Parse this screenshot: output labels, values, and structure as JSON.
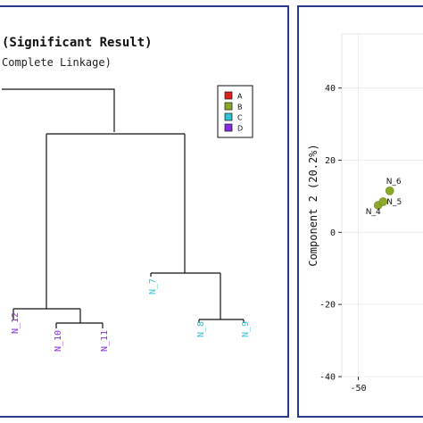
{
  "chart_data": [
    {
      "type": "dendrogram",
      "title": "(Significant Result)",
      "subtitle": "Complete Linkage)",
      "legend": {
        "position": "top-right",
        "entries": [
          {
            "label": "A",
            "color": "#e02020"
          },
          {
            "label": "B",
            "color": "#8aa829"
          },
          {
            "label": "C",
            "color": "#2ec4d6"
          },
          {
            "label": "D",
            "color": "#8a2be2"
          }
        ]
      },
      "leaves": [
        {
          "label": "N_12",
          "group": "D"
        },
        {
          "label": "N_10",
          "group": "D"
        },
        {
          "label": "N_11",
          "group": "D"
        },
        {
          "label": "N_7",
          "group": "C"
        },
        {
          "label": "N_8",
          "group": "C"
        },
        {
          "label": "N_9",
          "group": "C"
        }
      ]
    },
    {
      "type": "scatter",
      "ylabel": "Component 2 (20.2%)",
      "xlabel": "",
      "yticks": [
        40,
        20,
        0,
        -20,
        -40
      ],
      "xticks": [
        -50
      ],
      "ylim": [
        -40,
        55
      ],
      "xlim": [
        -55,
        -28
      ],
      "grid": true,
      "points": [
        {
          "label": "N_4",
          "x": -44,
          "y": 7.5,
          "group": "B"
        },
        {
          "label": "N_5",
          "x": -42.5,
          "y": 8.5,
          "group": "B"
        },
        {
          "label": "N_6",
          "x": -40.5,
          "y": 11.5,
          "group": "B"
        }
      ]
    }
  ]
}
